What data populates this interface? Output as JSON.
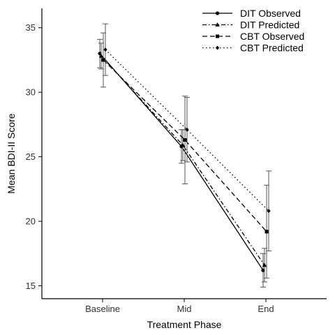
{
  "chart_data": {
    "type": "line",
    "title": "",
    "xlabel": "Treatment Phase",
    "ylabel": "Mean BDI-II Score",
    "categories": [
      "Baseline",
      "Mid",
      "End"
    ],
    "ylim": [
      14,
      36.5
    ],
    "yticks": [
      15,
      20,
      25,
      30,
      35
    ],
    "grid": false,
    "legend_position": "top-right",
    "series": [
      {
        "name": "DIT Observed",
        "values": [
          33.0,
          25.8,
          16.2
        ],
        "error_low": [
          31.9,
          24.5,
          14.9
        ],
        "error_high": [
          34.1,
          27.1,
          17.5
        ],
        "line_style": "solid",
        "marker": "circle"
      },
      {
        "name": "DIT Predicted",
        "values": [
          32.8,
          25.9,
          16.6
        ],
        "error_low": [
          31.8,
          24.7,
          15.3
        ],
        "error_high": [
          33.8,
          27.1,
          17.9
        ],
        "line_style": "dash-dot",
        "marker": "triangle"
      },
      {
        "name": "CBT Observed",
        "values": [
          32.5,
          26.3,
          19.2
        ],
        "error_low": [
          30.4,
          22.9,
          15.6
        ],
        "error_high": [
          34.6,
          29.7,
          22.8
        ],
        "line_style": "dashed",
        "marker": "square"
      },
      {
        "name": "CBT Predicted",
        "values": [
          33.3,
          27.1,
          20.8
        ],
        "error_low": [
          31.3,
          24.6,
          17.7
        ],
        "error_high": [
          35.3,
          29.6,
          23.9
        ],
        "line_style": "dotted",
        "marker": "diamond"
      }
    ]
  }
}
